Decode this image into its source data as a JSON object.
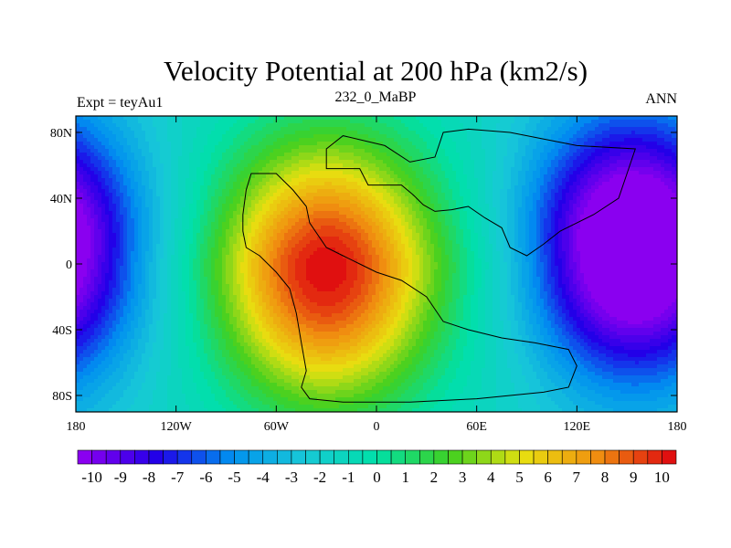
{
  "chart_data": {
    "type": "heatmap",
    "title": "Velocity Potential at 200 hPa (km2/s)",
    "left_string": "Expt = teyAu1",
    "center_string": "232_0_MaBP",
    "right_string": "ANN",
    "xlim": [
      -180,
      180
    ],
    "ylim": [
      -90,
      90
    ],
    "x_ticks": [
      {
        "value": -180,
        "label": "180"
      },
      {
        "value": -120,
        "label": "120W"
      },
      {
        "value": -60,
        "label": "60W"
      },
      {
        "value": 0,
        "label": "0"
      },
      {
        "value": 60,
        "label": "60E"
      },
      {
        "value": 120,
        "label": "120E"
      },
      {
        "value": 180,
        "label": "180"
      }
    ],
    "y_ticks": [
      {
        "value": 80,
        "label": "80N"
      },
      {
        "value": 40,
        "label": "40N"
      },
      {
        "value": 0,
        "label": "0"
      },
      {
        "value": -40,
        "label": "40S"
      },
      {
        "value": -80,
        "label": "80S"
      }
    ],
    "field_centers": [
      {
        "name": "positive-center",
        "lon": -30,
        "lat": -5,
        "value": 10.5
      },
      {
        "name": "negative-center",
        "lon": 148,
        "lat": 10,
        "value": -10.5
      },
      {
        "name": "negative-center-west",
        "lon": -180,
        "lat": 5,
        "value": -9.0
      }
    ],
    "colorbar": {
      "min": -10.5,
      "max": 10.5,
      "step": 0.5,
      "levels": [
        -10,
        -9,
        -8,
        -7,
        -6,
        -5,
        -4,
        -3,
        -2,
        -1,
        0,
        1,
        2,
        3,
        4,
        5,
        6,
        7,
        8,
        9,
        10
      ],
      "labels": [
        "-10",
        "-9",
        "-8",
        "-7",
        "-6",
        "-5",
        "-4",
        "-3",
        "-2",
        "-1",
        "0",
        "1",
        "2",
        "3",
        "4",
        "5",
        "6",
        "7",
        "8",
        "9",
        "10"
      ]
    },
    "color_stops": [
      "#8a00f0",
      "#2000e8",
      "#0090f0",
      "#18c8d8",
      "#00e0a8",
      "#40d020",
      "#e8e010",
      "#f09010",
      "#e01010"
    ],
    "continent_outline": [
      [
        -30,
        58
      ],
      [
        -10,
        58
      ],
      [
        -5,
        48
      ],
      [
        15,
        48
      ],
      [
        22,
        42
      ],
      [
        28,
        36
      ],
      [
        35,
        32
      ],
      [
        45,
        33
      ],
      [
        55,
        35
      ],
      [
        65,
        28
      ],
      [
        75,
        22
      ],
      [
        80,
        10
      ],
      [
        90,
        5
      ],
      [
        100,
        12
      ],
      [
        110,
        20
      ],
      [
        130,
        30
      ],
      [
        145,
        40
      ],
      [
        150,
        55
      ],
      [
        155,
        70
      ],
      [
        120,
        72
      ],
      [
        80,
        80
      ],
      [
        55,
        82
      ],
      [
        40,
        80
      ],
      [
        35,
        65
      ],
      [
        20,
        62
      ],
      [
        5,
        72
      ],
      [
        -20,
        78
      ],
      [
        -30,
        70
      ],
      [
        -30,
        58
      ]
    ],
    "continent_outline_south": [
      [
        -75,
        55
      ],
      [
        -60,
        55
      ],
      [
        -50,
        45
      ],
      [
        -42,
        35
      ],
      [
        -40,
        25
      ],
      [
        -30,
        10
      ],
      [
        -20,
        5
      ],
      [
        -10,
        0
      ],
      [
        0,
        -5
      ],
      [
        15,
        -10
      ],
      [
        30,
        -20
      ],
      [
        40,
        -35
      ],
      [
        55,
        -40
      ],
      [
        75,
        -45
      ],
      [
        95,
        -48
      ],
      [
        115,
        -52
      ],
      [
        120,
        -62
      ],
      [
        115,
        -75
      ],
      [
        100,
        -78
      ],
      [
        60,
        -82
      ],
      [
        20,
        -84
      ],
      [
        -20,
        -84
      ],
      [
        -40,
        -82
      ],
      [
        -45,
        -75
      ],
      [
        -42,
        -65
      ],
      [
        -45,
        -48
      ],
      [
        -48,
        -30
      ],
      [
        -52,
        -15
      ],
      [
        -60,
        -5
      ],
      [
        -70,
        5
      ],
      [
        -78,
        10
      ],
      [
        -80,
        20
      ],
      [
        -80,
        30
      ],
      [
        -78,
        45
      ],
      [
        -75,
        55
      ]
    ]
  },
  "colors": {
    "outline": "#000000",
    "frame": "#000000"
  }
}
